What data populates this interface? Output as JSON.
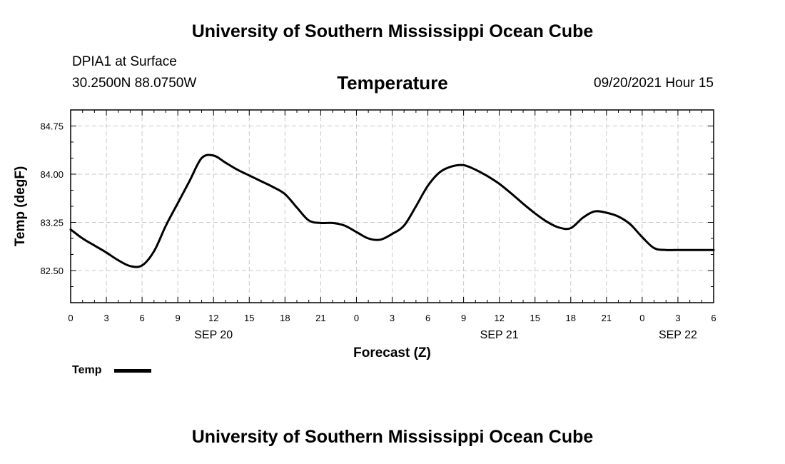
{
  "header": {
    "title": "University of Southern Mississippi Ocean Cube",
    "station": "DPIA1 at Surface",
    "coords": "30.2500N  88.0750W",
    "variable": "Temperature",
    "datetime": "09/20/2021 Hour 15"
  },
  "footer": {
    "title": "University of Southern Mississippi Ocean Cube"
  },
  "legend": {
    "label": "Temp",
    "color": "#000000"
  },
  "chart_data": {
    "type": "line",
    "xlabel": "Forecast (Z)",
    "ylabel": "Temp (degF)",
    "ylim": [
      82.0,
      85.0
    ],
    "xlim": [
      0,
      54
    ],
    "x_ticks": [
      0,
      3,
      6,
      9,
      12,
      15,
      18,
      21,
      24,
      27,
      30,
      33,
      36,
      39,
      42,
      45,
      48,
      51,
      54
    ],
    "x_tick_labels": [
      "0",
      "3",
      "6",
      "9",
      "12",
      "15",
      "18",
      "21",
      "0",
      "3",
      "6",
      "9",
      "12",
      "15",
      "18",
      "21",
      "0",
      "3",
      "6"
    ],
    "y_ticks": [
      82.5,
      83.25,
      84.0,
      84.75
    ],
    "y_tick_labels": [
      "82.50",
      "83.25",
      "84.00",
      "84.75"
    ],
    "date_labels": [
      {
        "x": 12,
        "label": "SEP 20"
      },
      {
        "x": 36,
        "label": "SEP 21"
      },
      {
        "x": 51,
        "label": "SEP 22"
      }
    ],
    "grid": true,
    "series": [
      {
        "name": "Temp",
        "color": "#000000",
        "x": [
          0,
          1,
          2,
          3,
          4,
          5,
          6,
          7,
          8,
          9,
          10,
          11,
          12,
          13,
          14,
          15,
          16,
          17,
          18,
          19,
          20,
          21,
          22,
          23,
          24,
          25,
          26,
          27,
          28,
          29,
          30,
          31,
          32,
          33,
          34,
          35,
          36,
          37,
          38,
          39,
          40,
          41,
          42,
          43,
          44,
          45,
          46,
          47,
          48,
          49,
          50,
          51,
          52,
          53,
          54
        ],
        "values": [
          83.14,
          83.0,
          82.89,
          82.78,
          82.66,
          82.57,
          82.58,
          82.8,
          83.2,
          83.55,
          83.9,
          84.25,
          84.29,
          84.18,
          84.07,
          83.98,
          83.89,
          83.8,
          83.69,
          83.48,
          83.28,
          83.24,
          83.24,
          83.2,
          83.1,
          83.0,
          82.98,
          83.07,
          83.2,
          83.5,
          83.82,
          84.03,
          84.12,
          84.14,
          84.07,
          83.97,
          83.85,
          83.7,
          83.54,
          83.39,
          83.26,
          83.17,
          83.16,
          83.32,
          83.42,
          83.4,
          83.34,
          83.22,
          83.02,
          82.85,
          82.82,
          82.82,
          82.82,
          82.82,
          82.82
        ]
      }
    ]
  }
}
